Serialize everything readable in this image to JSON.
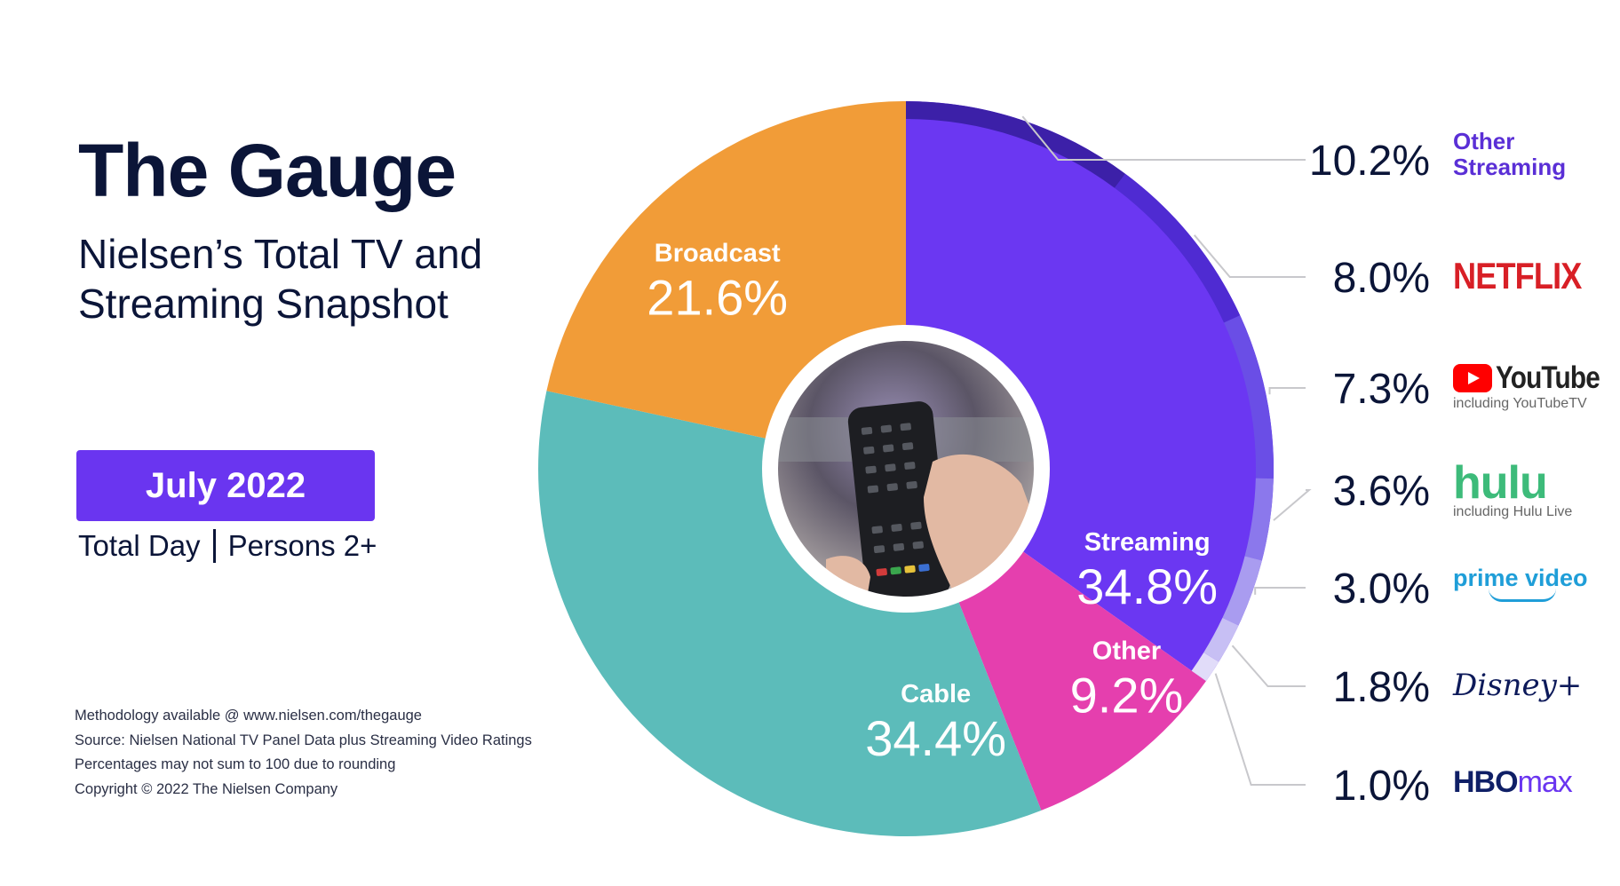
{
  "header": {
    "title": "The Gauge",
    "subtitle_line1": "Nielsen’s Total TV and",
    "subtitle_line2": "Streaming Snapshot"
  },
  "period": {
    "label": "July 2022",
    "daypart": "Total Day",
    "audience": "Persons 2+"
  },
  "notes": [
    "Methodology available @ www.nielsen.com/thegauge",
    "Source: Nielsen National TV Panel Data plus Streaming Video Ratings",
    "Percentages may not sum to 100 due to rounding",
    "Copyright © 2022 The Nielsen Company"
  ],
  "brands": {
    "other_streaming_line1": "Other",
    "other_streaming_line2": "Streaming",
    "netflix": "NETFLIX",
    "youtube": "YouTube",
    "youtube_sub": "including YouTubeTV",
    "hulu": "hulu",
    "hulu_sub": "including Hulu Live",
    "prime": "prime video",
    "disney": "Disney+",
    "hbo": "HBO",
    "hbo_max": "max"
  },
  "center_image": "tv-remote-photo",
  "colors": {
    "broadcast": "#f19c38",
    "cable": "#5cbcba",
    "other": "#e53fae",
    "streaming": "#6b37f2",
    "accent": "#6a35f0",
    "brand_band": [
      "#3c20a8",
      "#4f2bd2",
      "#6a4ee6",
      "#8b78ec",
      "#a99cf0",
      "#c7bff4",
      "#e1dcf9"
    ]
  },
  "chart_data": {
    "type": "pie",
    "subtype": "donut",
    "categories": [
      "Streaming",
      "Other",
      "Cable",
      "Broadcast"
    ],
    "values": [
      34.8,
      9.2,
      34.4,
      21.6
    ],
    "value_labels": [
      "34.8%",
      "9.2%",
      "34.4%",
      "21.6%"
    ],
    "streaming_breakdown": {
      "categories": [
        "Other Streaming",
        "NETFLIX",
        "YouTube",
        "hulu",
        "prime video",
        "Disney+",
        "HBO max"
      ],
      "values": [
        10.2,
        8.0,
        7.3,
        3.6,
        3.0,
        1.8,
        1.0
      ],
      "value_labels": [
        "10.2%",
        "8.0%",
        "7.3%",
        "3.6%",
        "3.0%",
        "1.8%",
        "1.0%"
      ]
    }
  }
}
